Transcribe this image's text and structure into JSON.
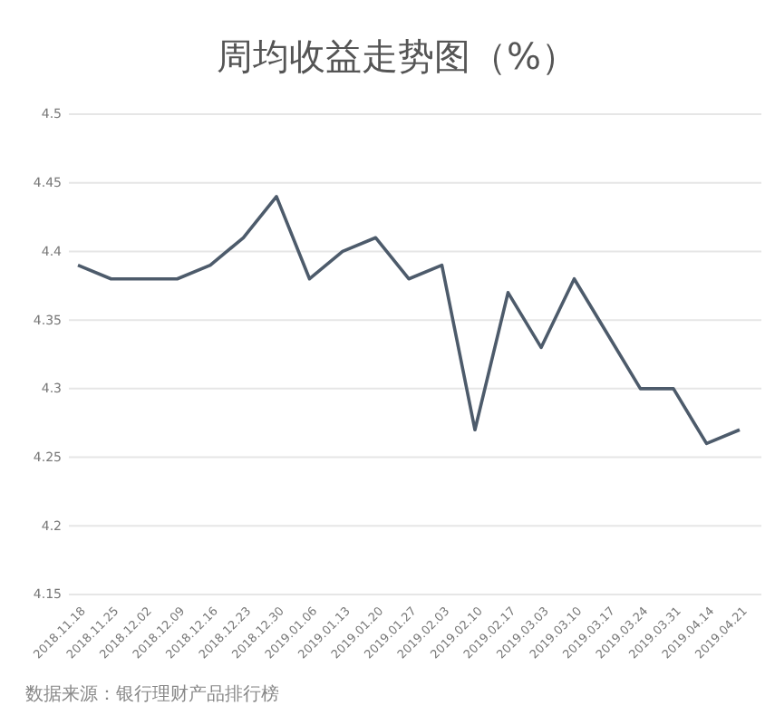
{
  "chart_data": {
    "type": "line",
    "title": "周均收益走势图（%）",
    "categories": [
      "2018.11.18",
      "2018.11.25",
      "2018.12.02",
      "2018.12.09",
      "2018.12.16",
      "2018.12.23",
      "2018.12.30",
      "2019.01.06",
      "2019.01.13",
      "2019.01.20",
      "2019.01.27",
      "2019.02.03",
      "2019.02.10",
      "2019.02.17",
      "2019.03.03",
      "2019.03.10",
      "2019.03.17",
      "2019.03.24",
      "2019.03.31",
      "2019.04.14",
      "2019.04.21"
    ],
    "series": [
      {
        "color": "#4d5b6b",
        "values": [
          4.39,
          4.38,
          4.38,
          4.38,
          4.39,
          4.41,
          4.44,
          4.38,
          4.4,
          4.41,
          4.38,
          4.39,
          4.27,
          4.37,
          4.33,
          4.38,
          4.34,
          4.3,
          4.3,
          4.26,
          4.27
        ]
      }
    ],
    "ylim": [
      4.15,
      4.5
    ],
    "yticks": [
      4.15,
      4.2,
      4.25,
      4.3,
      4.35,
      4.4,
      4.45,
      4.5
    ],
    "grid": "y",
    "marker": "none",
    "line_style": "solid",
    "annotations": [
      "数据来源：银行理财产品排行榜"
    ]
  }
}
